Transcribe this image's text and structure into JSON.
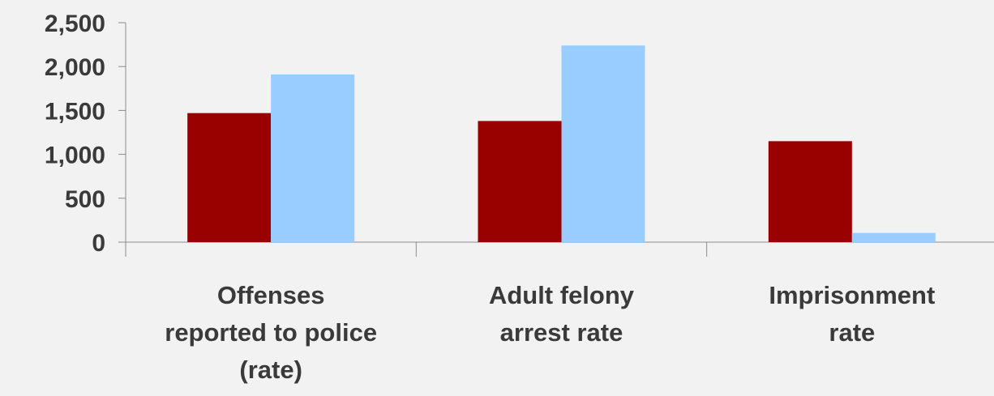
{
  "chart_data": {
    "type": "bar",
    "categories": [
      [
        "Offenses",
        "reported to police",
        "(rate)"
      ],
      [
        "Adult felony",
        "arrest rate"
      ],
      [
        "Imprisonment",
        "rate"
      ]
    ],
    "series": [
      {
        "values": [
          1470,
          1380,
          1150
        ],
        "color": "#990000"
      },
      {
        "values": [
          1910,
          2240,
          105
        ],
        "color": "#99ccff"
      }
    ],
    "ylim": [
      0,
      2500
    ],
    "yticks": [
      0,
      500,
      1000,
      1500,
      2000,
      2500
    ],
    "ytick_labels": [
      "0",
      "500",
      "1,000",
      "1,500",
      "2,000",
      "2,500"
    ],
    "grid": false
  }
}
